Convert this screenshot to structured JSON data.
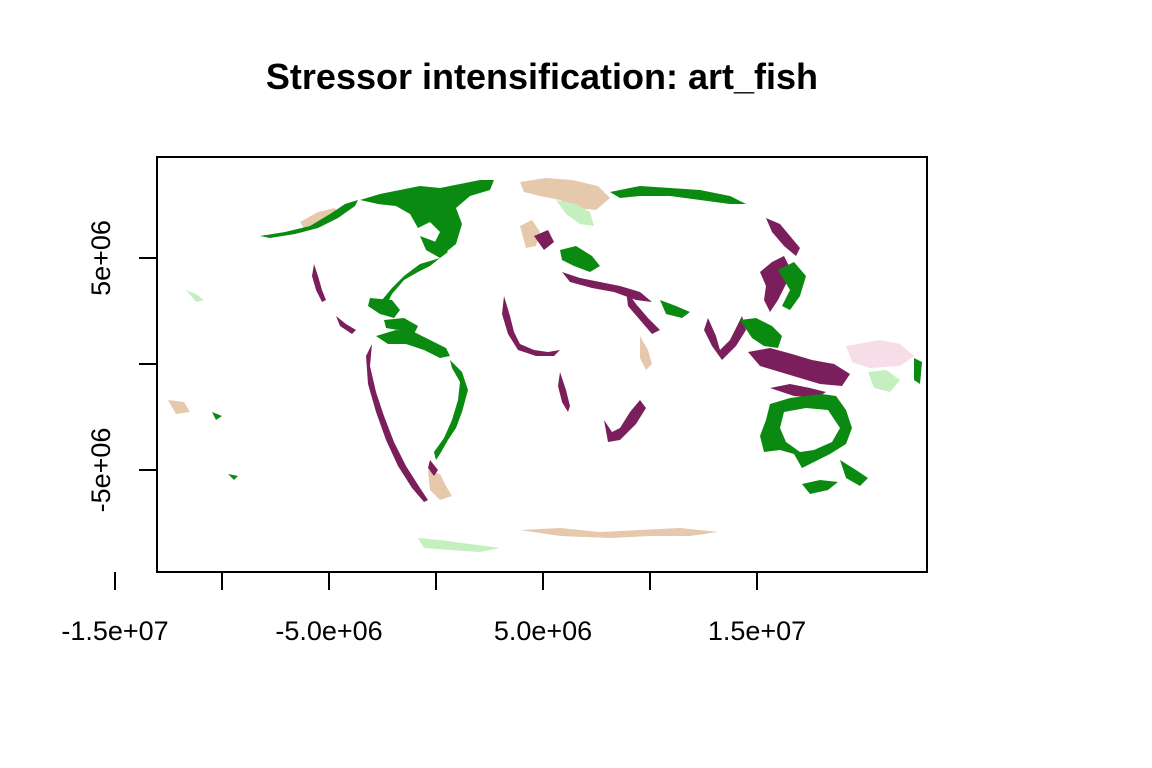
{
  "title": "Stressor intensification: art_fish",
  "x_axis": {
    "ticks": [
      -15000000,
      -10000000,
      -5000000,
      0,
      5000000,
      10000000,
      15000000
    ],
    "tick_labels": [
      {
        "value": -15000000,
        "label": "-1.5e+07"
      },
      {
        "value": -5000000,
        "label": "-5.0e+06"
      },
      {
        "value": 5000000,
        "label": "5.0e+06"
      },
      {
        "value": 15000000,
        "label": "1.5e+07"
      }
    ],
    "range": [
      -18000000,
      18000000
    ]
  },
  "y_axis": {
    "ticks": [
      -5000000,
      0,
      5000000
    ],
    "tick_labels": [
      {
        "value": 5000000,
        "label": "5e+06"
      },
      {
        "value": -5000000,
        "label": "-5e+06"
      }
    ],
    "range": [
      -9800000,
      9800000
    ]
  },
  "colors": {
    "green": "#0a8a10",
    "purple": "#7a1f5c",
    "tan": "#e6c8ad",
    "light_green": "#c4f0c0",
    "light_pink": "#f6dde8"
  }
}
